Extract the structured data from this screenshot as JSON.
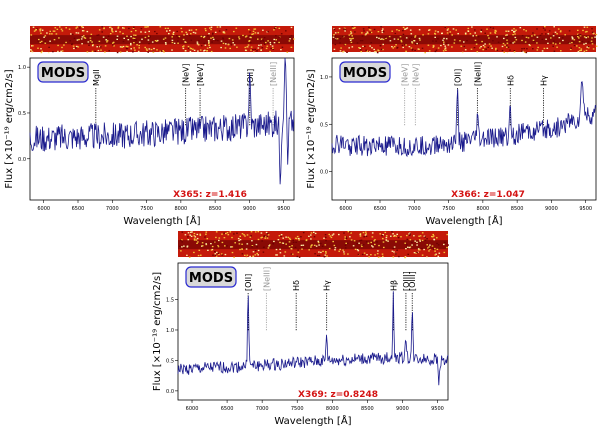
{
  "chart_data": [
    {
      "type": "line",
      "instrument": "MODS",
      "label": "X365: z=1.416",
      "xlabel": "Wavelength [Å]",
      "ylabel": "Flux [×10⁻¹⁹ erg/cm2/s]",
      "xlim": [
        5800,
        9650
      ],
      "ylim": [
        -0.45,
        1.1
      ],
      "xticks": [
        "6000",
        "6500",
        "7000",
        "7500",
        "8000",
        "8500",
        "9000",
        "9500"
      ],
      "yticks": [
        "0.0",
        "0.5",
        "1.0"
      ],
      "lines": [
        {
          "name": "MgII",
          "x": 6760,
          "color": "#000000"
        },
        {
          "name": "[NeV]",
          "x": 8070,
          "color": "#000000"
        },
        {
          "name": "[NeV]",
          "x": 8280,
          "color": "#000000"
        },
        {
          "name": "[OII]",
          "x": 9005,
          "color": "#000000"
        },
        {
          "name": "[NeIII]",
          "x": 9345,
          "color": "#999999"
        }
      ],
      "spectrum": {
        "seed": 365,
        "noise": 0.15,
        "continuum": [
          [
            5800,
            0.22
          ],
          [
            7000,
            0.25
          ],
          [
            8000,
            0.3
          ],
          [
            9000,
            0.36
          ],
          [
            9650,
            0.4
          ]
        ],
        "features": [
          [
            9005,
            0.5,
            18
          ],
          [
            9520,
            0.75,
            20
          ]
        ],
        "dips": [
          [
            9450,
            -0.55,
            15
          ],
          [
            9560,
            -0.6,
            10
          ]
        ]
      },
      "colormap_strip": true
    },
    {
      "type": "line",
      "instrument": "MODS",
      "label": "X366: z=1.047",
      "xlabel": "Wavelength [Å]",
      "ylabel": "Flux [×10⁻¹⁹ erg/cm2/s]",
      "xlim": [
        5800,
        9650
      ],
      "ylim": [
        -0.3,
        1.2
      ],
      "xticks": [
        "6000",
        "6500",
        "7000",
        "7500",
        "8000",
        "8500",
        "9000",
        "9500"
      ],
      "yticks": [
        "0.0",
        "0.5",
        "1.0"
      ],
      "lines": [
        {
          "name": "[NeV]",
          "x": 6860,
          "color": "#999999"
        },
        {
          "name": "[NeV]",
          "x": 7015,
          "color": "#999999"
        },
        {
          "name": "[OII]",
          "x": 7630,
          "color": "#000000"
        },
        {
          "name": "[NeIII]",
          "x": 7920,
          "color": "#000000"
        },
        {
          "name": "Hδ",
          "x": 8400,
          "color": "#000000"
        },
        {
          "name": "Hγ",
          "x": 8885,
          "color": "#000000"
        }
      ],
      "spectrum": {
        "seed": 366,
        "noise": 0.11,
        "continuum": [
          [
            5800,
            0.28
          ],
          [
            7000,
            0.26
          ],
          [
            8000,
            0.34
          ],
          [
            9000,
            0.45
          ],
          [
            9650,
            0.6
          ]
        ],
        "features": [
          [
            7630,
            0.5,
            15
          ],
          [
            7920,
            0.25,
            15
          ],
          [
            8400,
            0.3,
            15
          ],
          [
            9450,
            0.4,
            25
          ]
        ],
        "dips": []
      },
      "colormap_strip": true
    },
    {
      "type": "line",
      "instrument": "MODS",
      "label": "X369: z=0.8248",
      "xlabel": "Wavelength [Å]",
      "ylabel": "Flux [×10⁻¹⁹ erg/cm2/s]",
      "xlim": [
        5800,
        9650
      ],
      "ylim": [
        -0.15,
        2.1
      ],
      "xticks": [
        "6000",
        "6500",
        "7000",
        "7500",
        "8000",
        "8500",
        "9000",
        "9500"
      ],
      "yticks": [
        "0.0",
        "0.5",
        "1.0",
        "1.5"
      ],
      "lines": [
        {
          "name": "[OII]",
          "x": 6800,
          "color": "#000000"
        },
        {
          "name": "[NeIII]",
          "x": 7060,
          "color": "#999999"
        },
        {
          "name": "Hδ",
          "x": 7485,
          "color": "#000000"
        },
        {
          "name": "Hγ",
          "x": 7920,
          "color": "#000000"
        },
        {
          "name": "Hβ",
          "x": 8870,
          "color": "#000000"
        },
        {
          "name": "[OIII]",
          "x": 9050,
          "color": "#000000"
        },
        {
          "name": "[OIII]",
          "x": 9140,
          "color": "#000000"
        }
      ],
      "spectrum": {
        "seed": 369,
        "noise": 0.1,
        "continuum": [
          [
            5800,
            0.35
          ],
          [
            7000,
            0.42
          ],
          [
            8000,
            0.5
          ],
          [
            9000,
            0.55
          ],
          [
            9650,
            0.5
          ]
        ],
        "features": [
          [
            6800,
            1.3,
            12
          ],
          [
            7920,
            0.45,
            12
          ],
          [
            8870,
            1.0,
            12
          ],
          [
            9050,
            0.35,
            12
          ],
          [
            9140,
            0.75,
            12
          ]
        ],
        "dips": [
          [
            9520,
            -0.4,
            12
          ]
        ]
      },
      "colormap_strip": true
    }
  ]
}
